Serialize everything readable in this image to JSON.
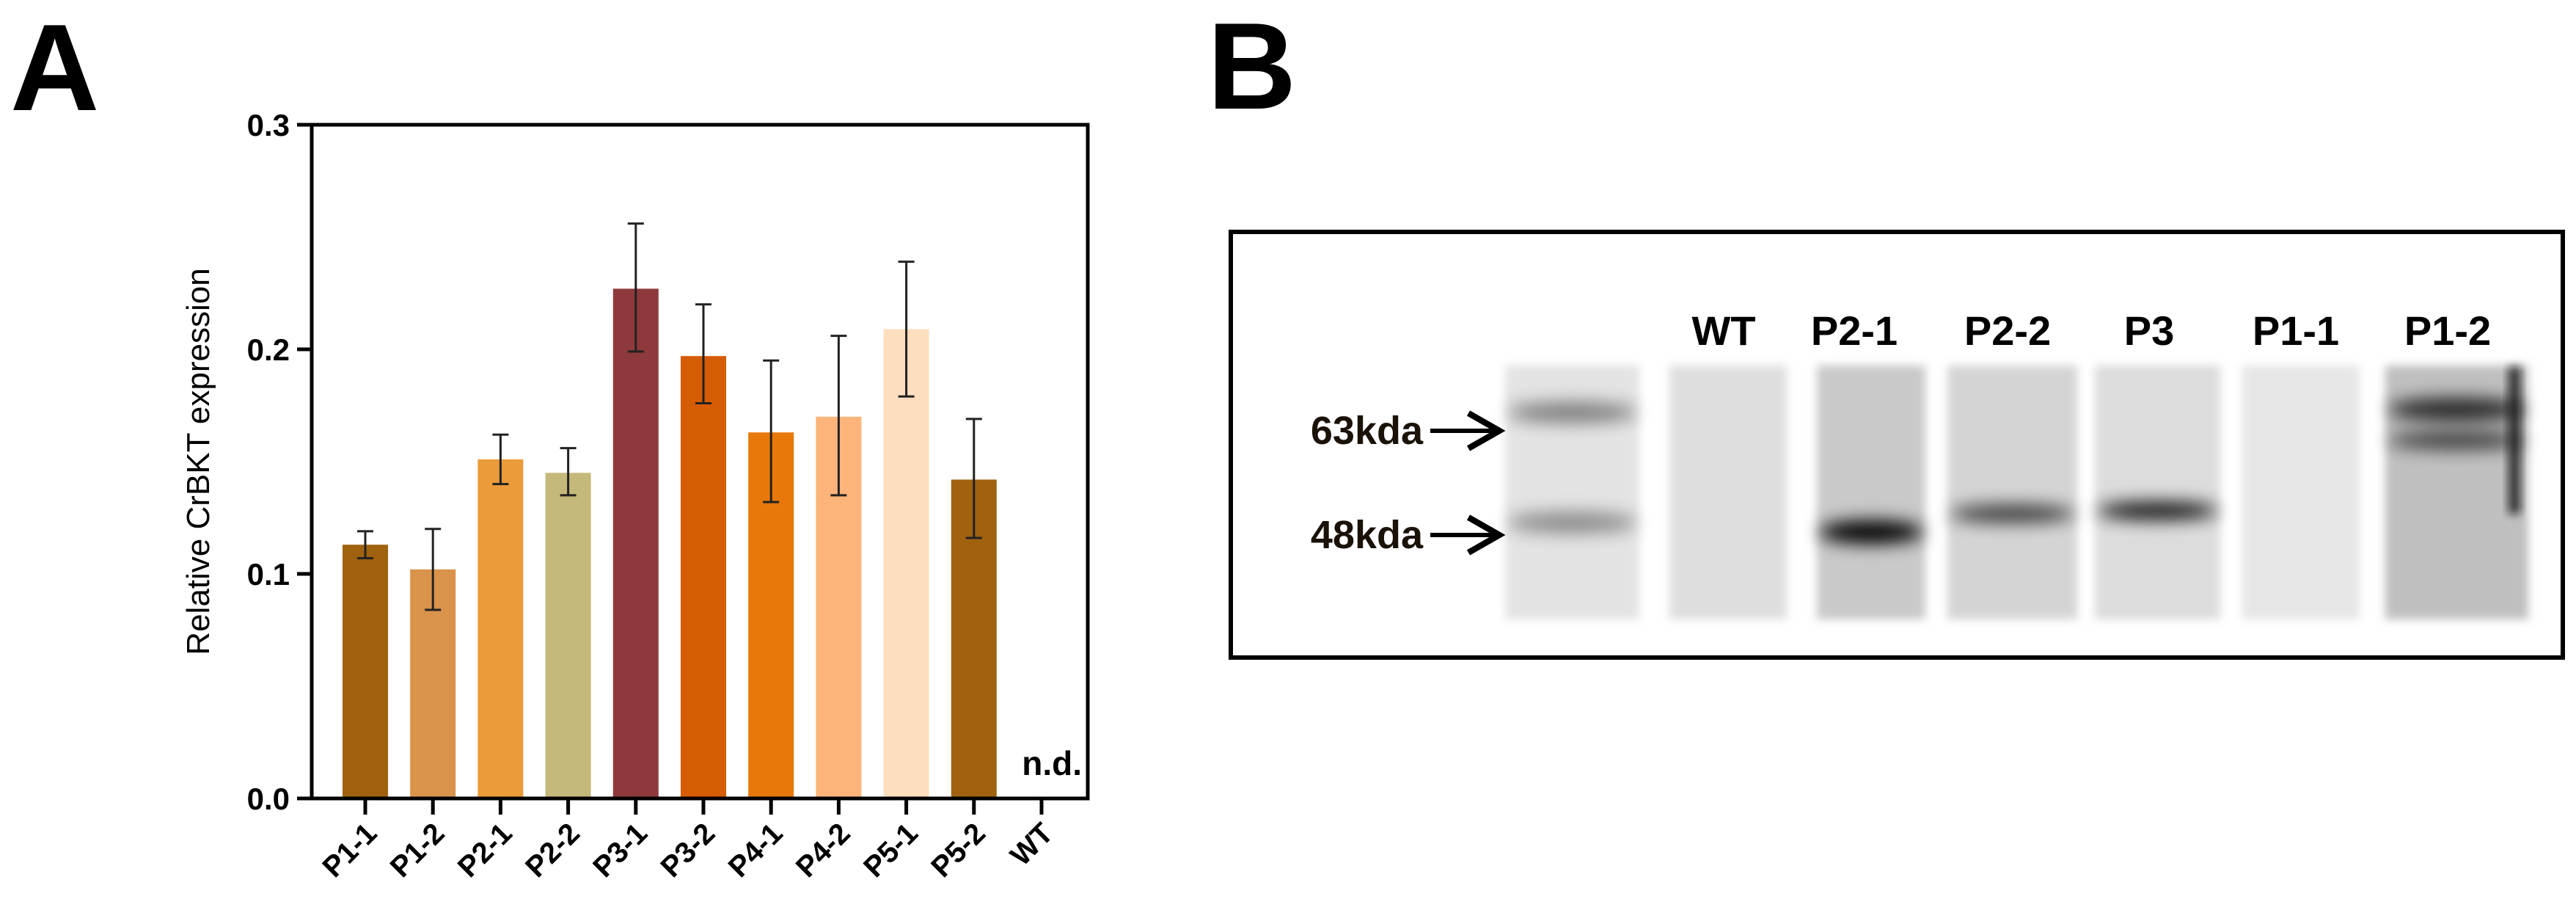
{
  "panels": {
    "a_label": "A",
    "b_label": "B"
  },
  "chart_data": {
    "type": "bar",
    "title": "",
    "xlabel": "",
    "ylabel": "Relative CrBKT expression",
    "ylim": [
      0,
      0.3
    ],
    "yticks": [
      "0.0",
      "0.1",
      "0.2",
      "0.3"
    ],
    "ytick_values": [
      0,
      0.1,
      0.2,
      0.3
    ],
    "grid": false,
    "categories": [
      "P1-1",
      "P1-2",
      "P2-1",
      "P2-2",
      "P3-1",
      "P3-2",
      "P4-1",
      "P4-2",
      "P5-1",
      "P5-2",
      "WT"
    ],
    "values": [
      0.113,
      0.102,
      0.151,
      0.145,
      0.227,
      0.197,
      0.163,
      0.17,
      0.209,
      0.142,
      null
    ],
    "error_low": [
      0.107,
      0.084,
      0.14,
      0.135,
      0.199,
      0.176,
      0.132,
      0.135,
      0.179,
      0.116,
      null
    ],
    "error_high": [
      0.119,
      0.12,
      0.162,
      0.156,
      0.256,
      0.22,
      0.195,
      0.206,
      0.239,
      0.169,
      null
    ],
    "colors": [
      "#A0620F",
      "#D9934A",
      "#EB9B3A",
      "#C4B87A",
      "#8E3A3C",
      "#D65C05",
      "#E8780A",
      "#FDB47A",
      "#FDDFBF",
      "#A0620F",
      null
    ],
    "annotations": [
      {
        "category": "WT",
        "text": "n.d."
      }
    ]
  },
  "blot": {
    "lanes": [
      "WT",
      "P2-1",
      "P2-2",
      "P3",
      "P1-1",
      "P1-2"
    ],
    "markers": [
      "63kda",
      "48kda"
    ]
  }
}
